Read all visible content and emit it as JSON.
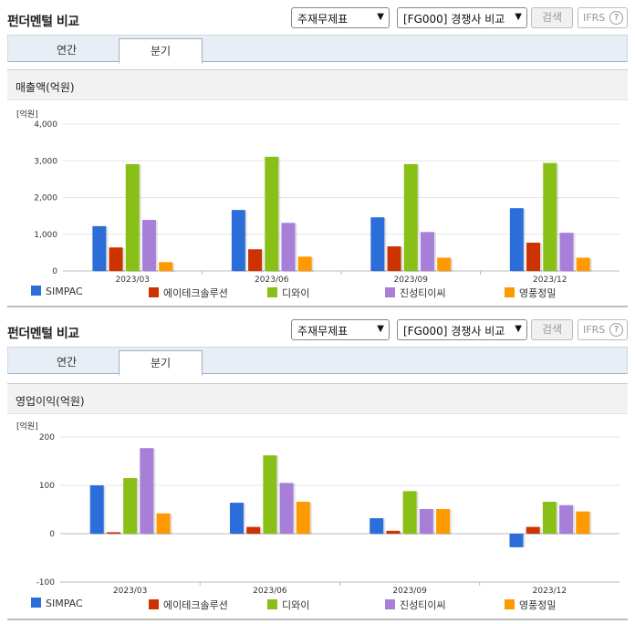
{
  "panels": [
    {
      "title": "펀더멘털 비교",
      "select1": "주재무제표",
      "select2": "[FG000] 경쟁사 비교",
      "search_label": "검색",
      "ifrs_label": "IFRS",
      "tabs": [
        "연간",
        "분기"
      ],
      "active_tab": 1,
      "section_title": "매출액(억원)",
      "unit": "[억원]"
    },
    {
      "title": "펀더멘털 비교",
      "select1": "주재무제표",
      "select2": "[FG000] 경쟁사 비교",
      "search_label": "검색",
      "ifrs_label": "IFRS",
      "tabs": [
        "연간",
        "분기"
      ],
      "active_tab": 1,
      "section_title": "영업이익(억원)",
      "unit": "[억원]"
    }
  ],
  "colors": [
    "#2b6dd9",
    "#cc3300",
    "#88c018",
    "#a77fd8",
    "#ff9900"
  ],
  "chart_data": [
    {
      "type": "bar",
      "categories": [
        "2023/03",
        "2023/06",
        "2023/09",
        "2023/12"
      ],
      "ylim": [
        0,
        4000
      ],
      "yticks": [
        0,
        1000,
        2000,
        3000,
        4000
      ],
      "ytick_labels": [
        "0",
        "1,000",
        "2,000",
        "3,000",
        "4,000"
      ],
      "series": [
        {
          "name": "SIMPAC",
          "values": [
            1220,
            1660,
            1460,
            1710
          ]
        },
        {
          "name": "에이테크솔루션",
          "values": [
            640,
            590,
            670,
            770
          ]
        },
        {
          "name": "디와이",
          "values": [
            2910,
            3110,
            2910,
            2940
          ]
        },
        {
          "name": "진성티이씨",
          "values": [
            1390,
            1310,
            1060,
            1040
          ]
        },
        {
          "name": "영풍정밀",
          "values": [
            240,
            390,
            360,
            360
          ]
        }
      ]
    },
    {
      "type": "bar",
      "categories": [
        "2023/03",
        "2023/06",
        "2023/09",
        "2023/12"
      ],
      "ylim": [
        -100,
        200
      ],
      "yticks": [
        -100,
        0,
        100,
        200
      ],
      "ytick_labels": [
        "-100",
        "0",
        "100",
        "200"
      ],
      "series": [
        {
          "name": "SIMPAC",
          "values": [
            100,
            64,
            32,
            -28
          ]
        },
        {
          "name": "에이테크솔루션",
          "values": [
            3,
            14,
            6,
            14
          ]
        },
        {
          "name": "디와이",
          "values": [
            115,
            162,
            88,
            66
          ]
        },
        {
          "name": "진성티이씨",
          "values": [
            177,
            105,
            51,
            59
          ]
        },
        {
          "name": "영풍정밀",
          "values": [
            42,
            66,
            51,
            46
          ]
        }
      ]
    }
  ]
}
